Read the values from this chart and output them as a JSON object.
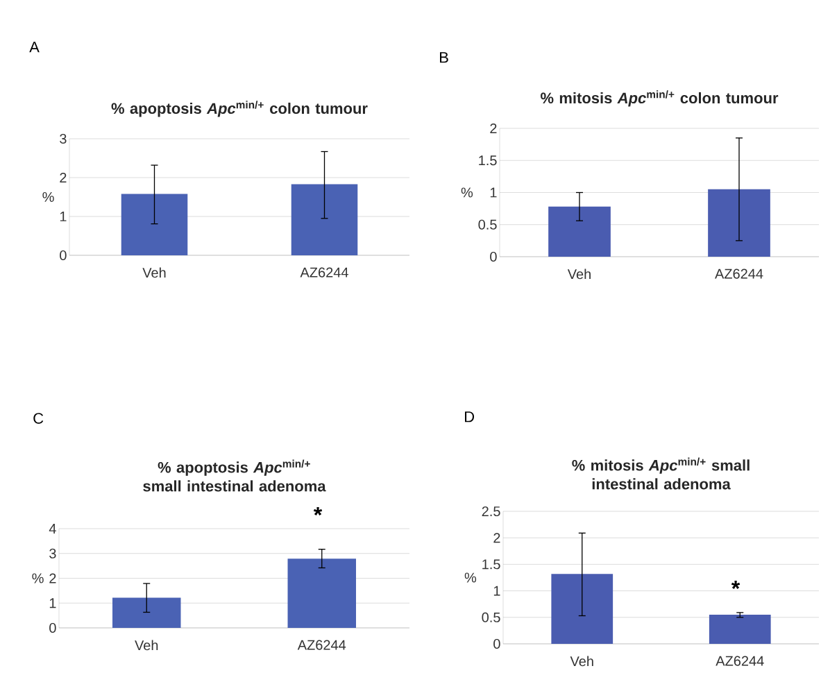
{
  "chart_data": [
    {
      "type": "bar",
      "title": "% apoptosis *Apc*$^{min/+}$ colon tumour",
      "ylabel": "%",
      "categories": [
        "Veh",
        "AZ6244"
      ],
      "values": [
        1.58,
        1.83
      ],
      "errors": [
        [
          0.81,
          2.32
        ],
        [
          0.95,
          2.67
        ]
      ],
      "color": "#4a62b4",
      "ylim": [
        0,
        3
      ],
      "yticks": [
        0,
        1,
        2,
        3
      ],
      "grid": "y",
      "annotations": [
        "A"
      ]
    },
    {
      "type": "bar",
      "title": "% mitosis *Apc*$^{min/+}$ colon tumour",
      "ylabel": "%",
      "categories": [
        "Veh",
        "AZ6244"
      ],
      "values": [
        0.78,
        1.05
      ],
      "errors": [
        [
          0.56,
          1.0
        ],
        [
          0.25,
          1.85
        ]
      ],
      "color": "#4a5cb0",
      "ylim": [
        0,
        2
      ],
      "yticks": [
        0,
        0.5,
        1,
        1.5,
        2
      ],
      "grid": "y",
      "annotations": [
        "B"
      ]
    },
    {
      "type": "bar",
      "title": "% apoptosis *Apc*$^{min/+}$ small intestinal adenoma",
      "ylabel": "%",
      "categories": [
        "Veh",
        "AZ6244"
      ],
      "values": [
        1.22,
        2.79
      ],
      "errors": [
        [
          0.63,
          1.79
        ],
        [
          2.42,
          3.17
        ]
      ],
      "color": "#4a62b4",
      "ylim": [
        0,
        4
      ],
      "yticks": [
        0,
        1,
        2,
        3,
        4
      ],
      "grid": "y",
      "annotations": [
        "C",
        "*"
      ]
    },
    {
      "type": "bar",
      "title": "% mitosis *Apc*$^{min/+}$ small intestinal adenoma",
      "ylabel": "%",
      "categories": [
        "Veh",
        "AZ6244"
      ],
      "values": [
        1.32,
        0.55
      ],
      "errors": [
        [
          0.53,
          2.09
        ],
        [
          0.5,
          0.59
        ]
      ],
      "color": "#4a5cb0",
      "ylim": [
        0,
        2.5
      ],
      "yticks": [
        0,
        0.5,
        1,
        1.5,
        2,
        2.5
      ],
      "grid": "y",
      "annotations": [
        "D",
        "*"
      ]
    }
  ]
}
